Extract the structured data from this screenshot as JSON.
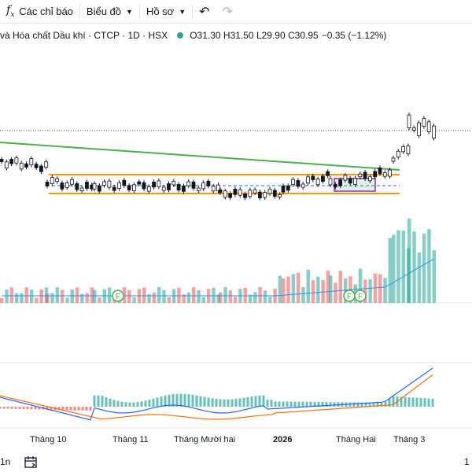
{
  "toolbar": {
    "indicators_label": "Các chỉ báo",
    "chart_type_label": "Biểu đồ",
    "profile_label": "Hồ sơ",
    "fx_symbol": "f",
    "fx_sub": "x"
  },
  "legend": {
    "title": "và Hóa chất Dầu khí · CTCP · 1D · HSX",
    "open": "O31.30",
    "high": "H31.50",
    "low": "L29.90",
    "close": "C30.95",
    "change": "−0.35 (−1.12%)"
  },
  "time_axis": {
    "labels": [
      "Tháng 10",
      "Tháng 11",
      "Tháng Mười hai",
      "2026",
      "Tháng Hai",
      "Tháng 3"
    ]
  },
  "bottom_bar": {
    "left_text": "1n",
    "right_text": "1"
  },
  "markers": {
    "financial_label": "F"
  },
  "colors": {
    "up": "#26a69a",
    "down": "#ef5350",
    "trendline": "#4caf50",
    "range_line": "#ff9800",
    "box": "#9c27b0",
    "macd": "#2962ff",
    "signal": "#ff6d00"
  }
}
